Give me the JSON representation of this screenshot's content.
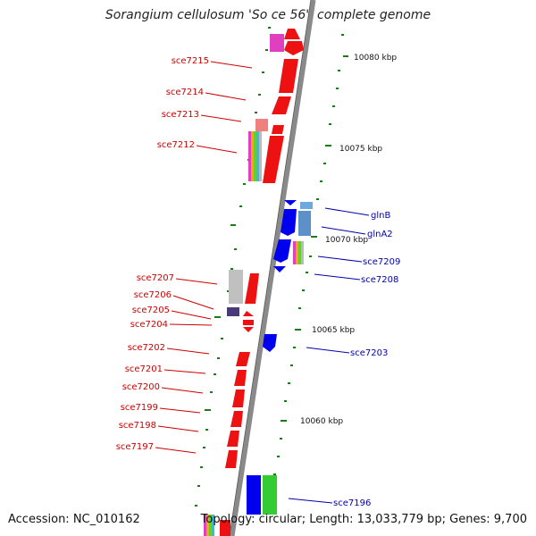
{
  "title": "Sorangium cellulosum 'So ce 56', complete genome",
  "footer": {
    "accession": "Accession: NC_010162",
    "summary": "Topology: circular; Length: 13,033,779 bp; Genes: 9,700"
  },
  "colors": {
    "backbone": "#8a8a8a",
    "forward_gene": "#ee0000",
    "reverse_gene": "#0000ee",
    "forward_label": "#cc0000",
    "reverse_label": "#0000aa",
    "tick": "#1a7a1a",
    "rna_pink": "#e040c0",
    "grey_feature": "#b8b8b8",
    "light_blue": "#5b90c8",
    "purple": "#4a3a7a",
    "green_gene": "#33cc33"
  },
  "scale": {
    "unit": "kbp",
    "labels": [
      "10080 kbp",
      "10075 kbp",
      "10070 kbp",
      "10065 kbp",
      "10060 kbp"
    ]
  },
  "genes_forward": [
    "sce7215",
    "sce7214",
    "sce7213",
    "sce7212",
    "sce7207",
    "sce7206",
    "sce7205",
    "sce7204",
    "sce7202",
    "sce7201",
    "sce7200",
    "sce7199",
    "sce7198",
    "sce7197"
  ],
  "genes_reverse": [
    "glnB",
    "glnA2",
    "sce7209",
    "sce7208",
    "sce7203",
    "sce7196"
  ]
}
